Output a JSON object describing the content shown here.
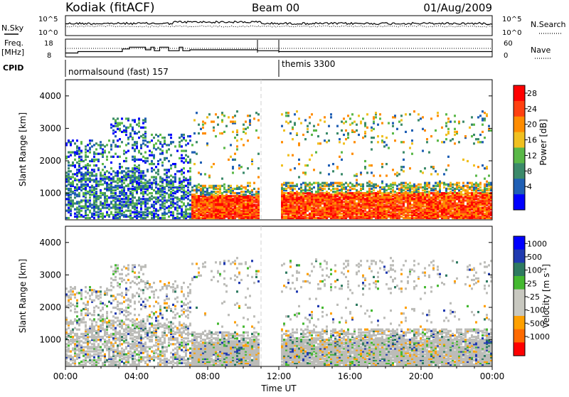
{
  "header": {
    "station": "Kodiak (fitACF)",
    "beam": "Beam 00",
    "date": "01/Aug/2009"
  },
  "labels": {
    "nsky": "N.Sky",
    "nsearch": "N.Search",
    "freq_line1": "Freq.",
    "freq_line2": "[MHz]",
    "nave": "Nave",
    "cpid": "CPID",
    "cpid_segments": [
      "normalsound (fast) 157",
      "themis 3300"
    ]
  },
  "colors": {
    "power": [
      "#0000ff",
      "#1f5fb4",
      "#3b8a6a",
      "#5ab848",
      "#f0c020",
      "#ff8c00",
      "#ff4010",
      "#ff0000"
    ],
    "velocity": [
      "#ff0000",
      "#ff6a00",
      "#ffa000",
      "#c8c8c0",
      "#c8c8c0",
      "#44b830",
      "#2e7a60",
      "#203ab0",
      "#0000ff"
    ],
    "scatter_gray": "#bcbcb8"
  },
  "chart_data": [
    {
      "type": "line",
      "panel": "noise",
      "ylabel_left": "N.Sky",
      "ylabel_right": "N.Search",
      "left_ticks": [
        "10^5",
        "10^0"
      ],
      "right_ticks": [
        "10^5",
        "10^0"
      ],
      "x_range_hours": [
        0,
        24
      ],
      "series": [
        {
          "style": "solid",
          "values_hint": "near 10^4 throughout"
        },
        {
          "style": "dotted",
          "values_hint": "near 10^3.5 throughout"
        }
      ]
    },
    {
      "type": "line",
      "panel": "frequency",
      "ylabel_left": "Freq. [MHz]",
      "ylabel_right": "Nave",
      "left_ticks": [
        "18",
        "8"
      ],
      "right_ticks": [
        "60",
        "0"
      ],
      "freq_steps_hours": [
        0,
        0.7,
        3.2,
        3.6,
        4.5,
        4.8,
        5.0,
        5.3,
        5.8,
        6.4,
        6.6,
        7.0,
        10.8,
        12.0,
        24
      ],
      "freq_steps_mhz": [
        10.2,
        11.0,
        12.5,
        13.5,
        12.0,
        13.5,
        11.5,
        13.5,
        11.5,
        13.5,
        11.5,
        12.0,
        11.5,
        11.0,
        11.0
      ]
    },
    {
      "type": "heatmap",
      "panel": "power",
      "ylabel": "Slant Range [km]",
      "yticks": [
        1000,
        2000,
        3000,
        4000
      ],
      "ylim": [
        180,
        4500
      ],
      "colorbar_label": "Power [dB]",
      "colorbar_ticks": [
        "28",
        "24",
        "20",
        "16",
        "12",
        "8",
        "4"
      ]
    },
    {
      "type": "heatmap",
      "panel": "velocity",
      "ylabel": "Slant Range [km]",
      "yticks": [
        1000,
        2000,
        3000,
        4000
      ],
      "ylim": [
        180,
        4500
      ],
      "colorbar_label": "Velocity [m s^-1]",
      "colorbar_ticks": [
        "1000",
        "500",
        "100",
        "25",
        "-25",
        "-100",
        "-500",
        "-1000"
      ]
    }
  ],
  "x_axis": {
    "label": "Time UT",
    "ticks": [
      "00:00",
      "04:00",
      "08:00",
      "12:00",
      "16:00",
      "20:00",
      "00:00"
    ],
    "hours": [
      0,
      4,
      8,
      12,
      16,
      20,
      24
    ]
  }
}
